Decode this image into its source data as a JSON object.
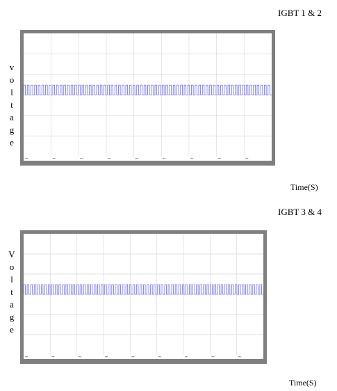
{
  "charts": [
    {
      "title": "IGBT 1 & 2",
      "ylabel": [
        "v",
        "o",
        "l",
        "t",
        "a",
        "g",
        "e"
      ],
      "xlabel": "Time(S)"
    },
    {
      "title": "IGBT 3 & 4",
      "ylabel": [
        "V",
        "o",
        "l",
        "t",
        "a",
        "g",
        "e"
      ],
      "xlabel": "Time(S)"
    }
  ],
  "chart_data": [
    {
      "type": "line",
      "title": "IGBT 1 & 2",
      "xlabel": "Time(S)",
      "ylabel": "voltage",
      "grid": true,
      "signal": "square-wave pulse train",
      "pulse_count": 68,
      "series": [
        {
          "color": "#6b6bff"
        }
      ]
    },
    {
      "type": "line",
      "title": "IGBT 3 & 4",
      "xlabel": "Time(S)",
      "ylabel": "Voltage",
      "grid": true,
      "signal": "square-wave pulse train",
      "pulse_count": 68,
      "series": [
        {
          "color": "#6b6bff"
        }
      ]
    }
  ],
  "colors": {
    "frame": "#7f7f7f",
    "grid": "#d9d9d9",
    "trace": "#6b6bff"
  }
}
